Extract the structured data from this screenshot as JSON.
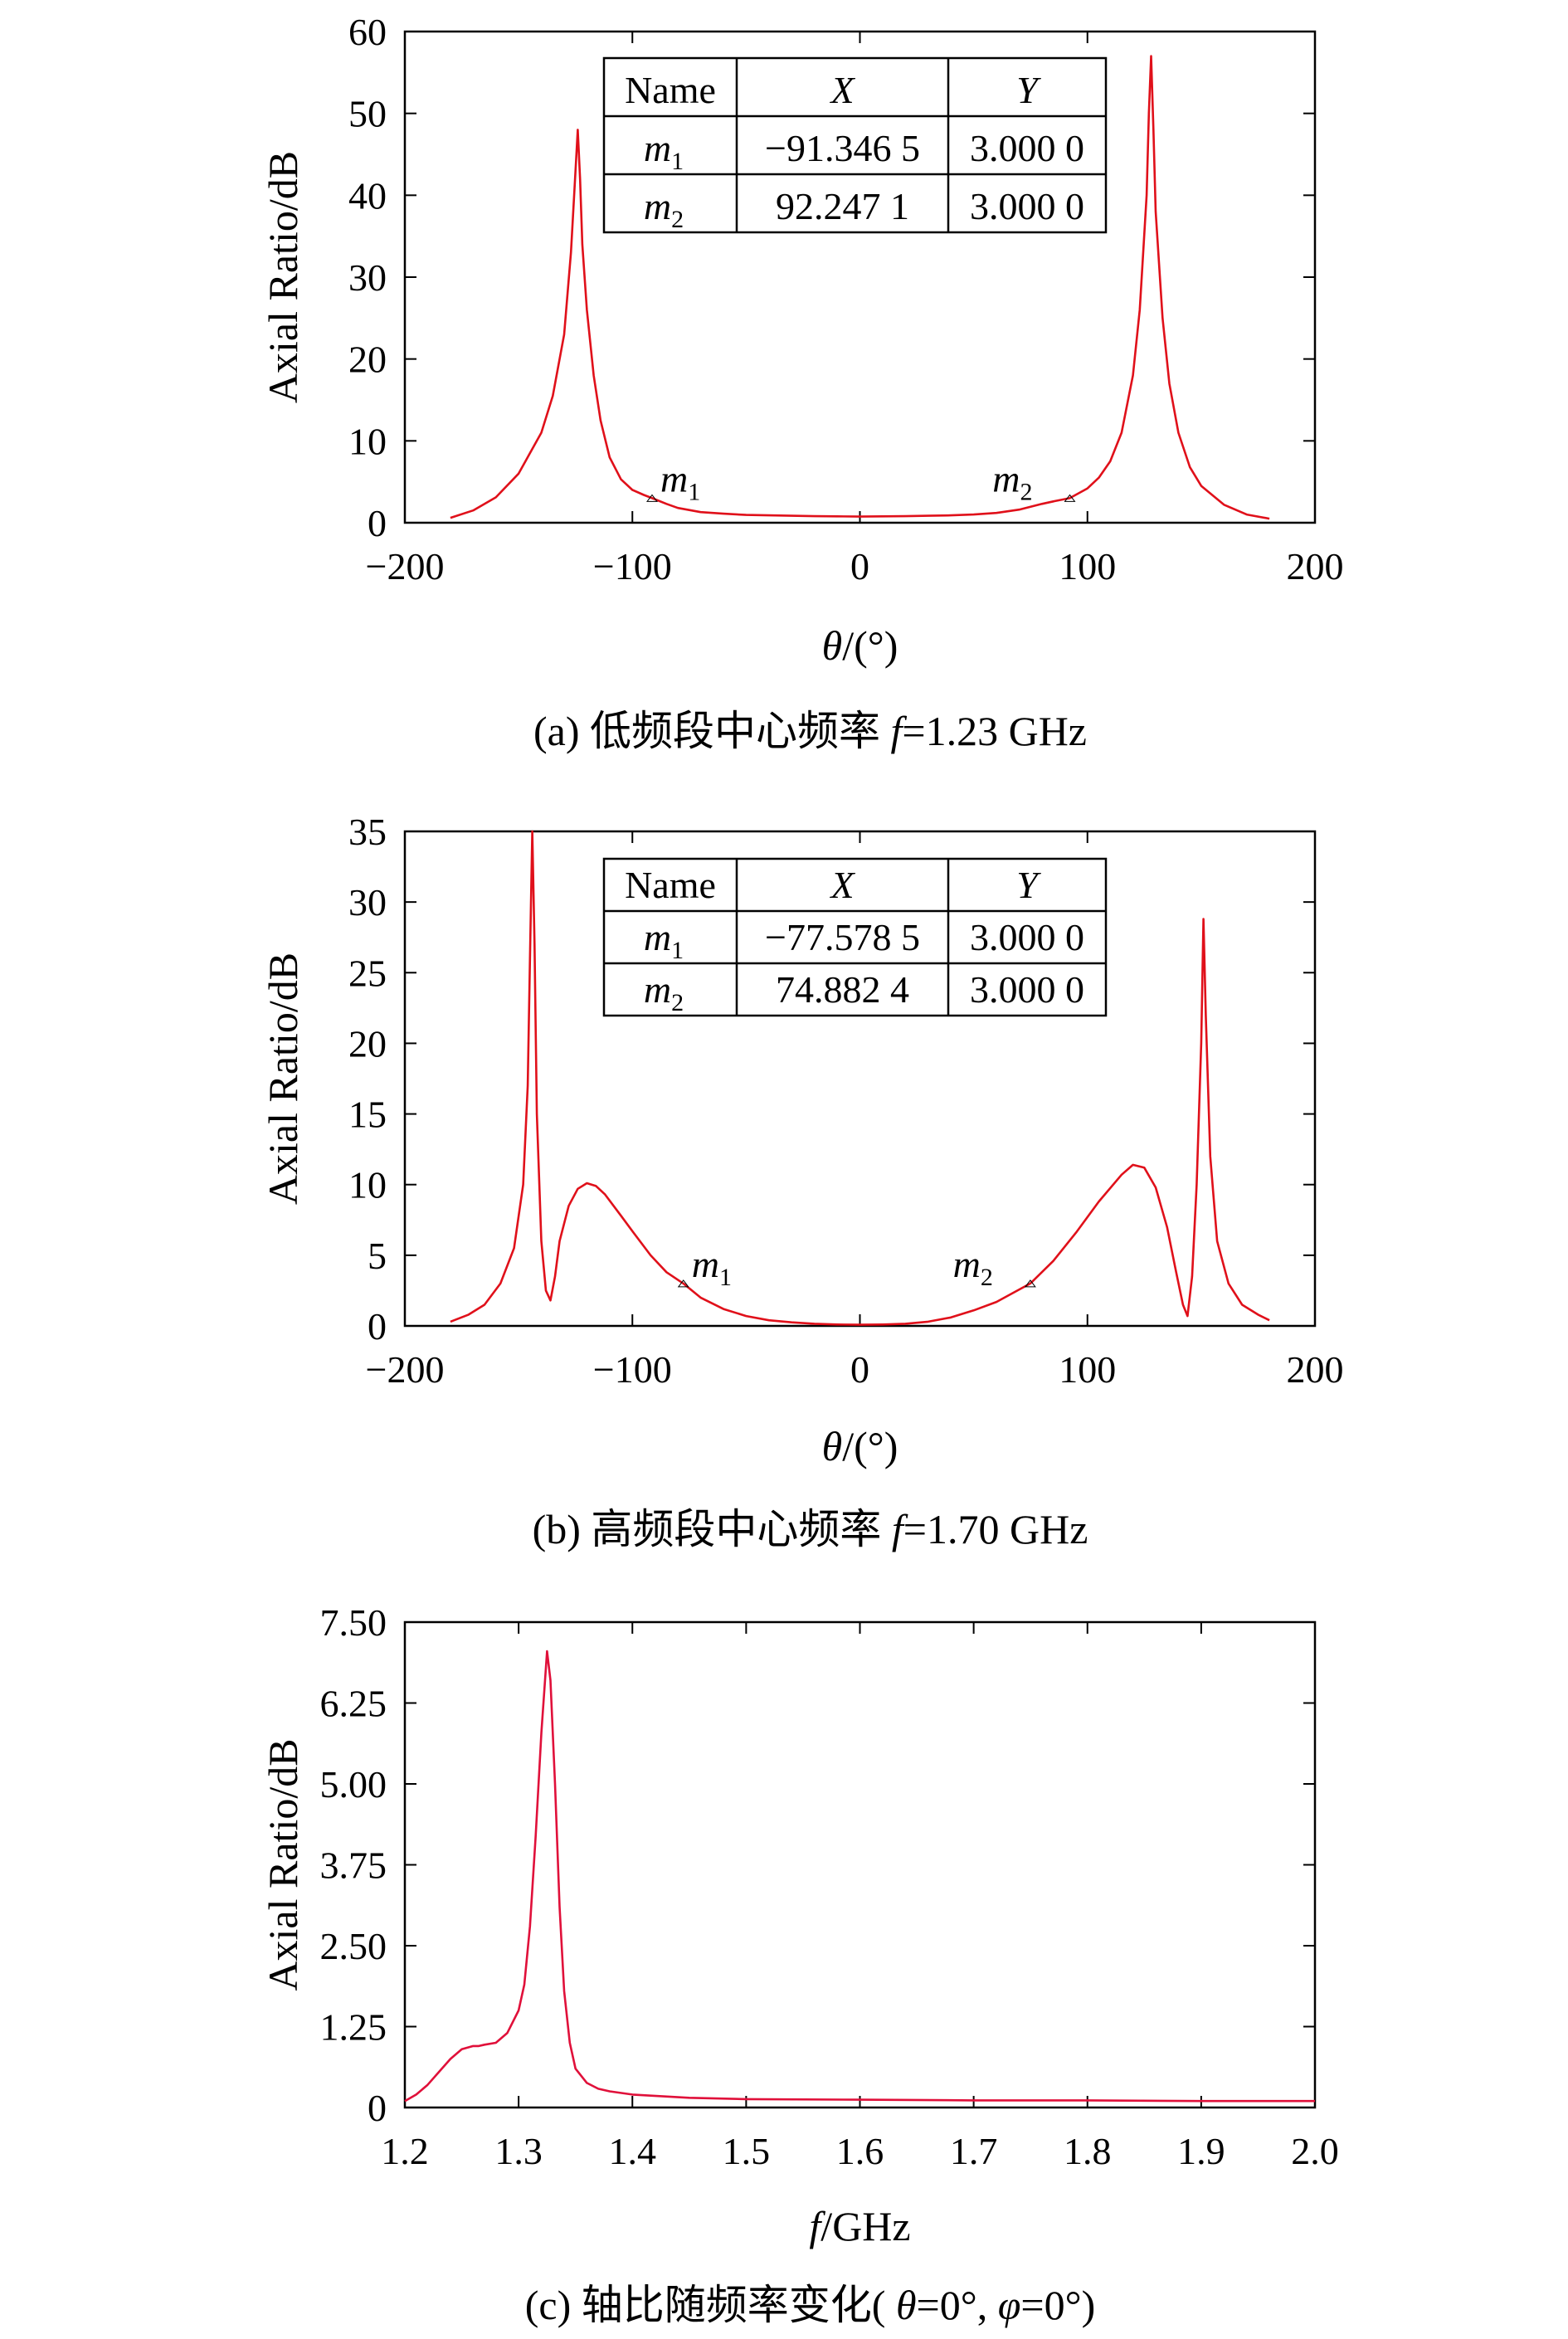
{
  "chart_data": [
    {
      "type": "line",
      "caption": "(a) 低频段中心频率 f=1.23 GHz",
      "xlabel": "θ/(°)",
      "ylabel": "Axial Ratio/dB",
      "xlim": [
        -200,
        200
      ],
      "ylim": [
        0,
        60
      ],
      "xticks": [
        "−200",
        "−100",
        "0",
        "100",
        "200"
      ],
      "yticks": [
        "0",
        "10",
        "20",
        "30",
        "40",
        "50",
        "60"
      ],
      "line_color": "#e0101a",
      "grid": false,
      "series": [
        {
          "x": [
            -180,
            -170,
            -160,
            -150,
            -140,
            -135,
            -130,
            -127,
            -125,
            -124,
            -123,
            -122,
            -120,
            -117,
            -114,
            -110,
            -105,
            -100,
            -95,
            -91.3,
            -85,
            -80,
            -70,
            -60,
            -50,
            -40,
            -30,
            -20,
            -10,
            0,
            10,
            20,
            30,
            40,
            50,
            60,
            70,
            80,
            85,
            92.2,
            100,
            105,
            110,
            115,
            120,
            123,
            126,
            127,
            128,
            129,
            130,
            133,
            136,
            140,
            145,
            150,
            160,
            170,
            180
          ],
          "y": [
            0.6,
            1.5,
            3.1,
            6.0,
            11.0,
            15.5,
            23.0,
            33.0,
            43.0,
            48.0,
            42.0,
            34.0,
            26.0,
            18.0,
            12.5,
            8.0,
            5.3,
            4.0,
            3.4,
            3.0,
            2.3,
            1.8,
            1.3,
            1.1,
            0.95,
            0.9,
            0.85,
            0.8,
            0.78,
            0.75,
            0.78,
            0.8,
            0.85,
            0.9,
            1.0,
            1.2,
            1.6,
            2.3,
            2.6,
            3.0,
            4.2,
            5.5,
            7.5,
            11.0,
            18.0,
            26.0,
            40.0,
            50.0,
            57.0,
            48.0,
            38.0,
            25.0,
            17.0,
            11.0,
            6.8,
            4.5,
            2.2,
            1.0,
            0.5
          ]
        }
      ],
      "markers": [
        {
          "name": "m1",
          "x": -91.3465,
          "y": 3.0
        },
        {
          "name": "m2",
          "x": 92.2471,
          "y": 3.0
        }
      ],
      "table": {
        "headers": [
          "Name",
          "X",
          "Y"
        ],
        "rows": [
          [
            "m",
            "1",
            "−91.346 5",
            "3.000 0"
          ],
          [
            "m",
            "2",
            "92.247 1",
            "3.000 0"
          ]
        ]
      }
    },
    {
      "type": "line",
      "caption": "(b) 高频段中心频率 f=1.70 GHz",
      "xlabel": "θ/(°)",
      "ylabel": "Axial Ratio/dB",
      "xlim": [
        -200,
        200
      ],
      "ylim": [
        0,
        35
      ],
      "xticks": [
        "−200",
        "−100",
        "0",
        "100",
        "200"
      ],
      "yticks": [
        "0",
        "5",
        "10",
        "15",
        "20",
        "25",
        "30",
        "35"
      ],
      "line_color": "#e0101a",
      "grid": false,
      "series": [
        {
          "x": [
            -180,
            -172,
            -165,
            -158,
            -152,
            -148,
            -146,
            -145,
            -144,
            -143,
            -142,
            -140,
            -138,
            -136,
            -134,
            -132,
            -128,
            -124,
            -120,
            -116,
            -112,
            -105,
            -100,
            -92,
            -85,
            -77.6,
            -70,
            -60,
            -50,
            -40,
            -30,
            -20,
            -10,
            0,
            10,
            20,
            30,
            40,
            50,
            60,
            74.9,
            85,
            95,
            105,
            115,
            120,
            125,
            130,
            135,
            139,
            142,
            144,
            146,
            148,
            150,
            151,
            152,
            154,
            157,
            162,
            168,
            175,
            180
          ],
          "y": [
            0.3,
            0.8,
            1.5,
            3.0,
            5.5,
            10.0,
            17.0,
            26.0,
            35.0,
            27.0,
            15.0,
            6.0,
            2.5,
            1.8,
            3.5,
            6.0,
            8.5,
            9.7,
            10.1,
            9.9,
            9.3,
            7.8,
            6.7,
            5.0,
            3.8,
            3.0,
            2.0,
            1.2,
            0.7,
            0.4,
            0.25,
            0.15,
            0.1,
            0.08,
            0.1,
            0.15,
            0.3,
            0.6,
            1.1,
            1.7,
            3.0,
            4.6,
            6.6,
            8.8,
            10.7,
            11.4,
            11.2,
            9.8,
            7.0,
            3.8,
            1.5,
            0.7,
            3.5,
            10.0,
            20.0,
            28.8,
            22.0,
            12.0,
            6.0,
            3.0,
            1.5,
            0.8,
            0.4
          ]
        }
      ],
      "markers": [
        {
          "name": "m1",
          "x": -77.5785,
          "y": 3.0
        },
        {
          "name": "m2",
          "x": 74.8824,
          "y": 3.0
        }
      ],
      "table": {
        "headers": [
          "Name",
          "X",
          "Y"
        ],
        "rows": [
          [
            "m",
            "1",
            "−77.578 5",
            "3.000 0"
          ],
          [
            "m",
            "2",
            "74.882 4",
            "3.000 0"
          ]
        ]
      }
    },
    {
      "type": "line",
      "caption": "(c) 轴比随频率变化( θ=0°, φ=0°)",
      "xlabel": "f/GHz",
      "ylabel": "Axial Ratio/dB",
      "xlim": [
        1.2,
        2.0
      ],
      "ylim": [
        0,
        7.5
      ],
      "xticks": [
        "1.2",
        "1.3",
        "1.4",
        "1.5",
        "1.6",
        "1.7",
        "1.8",
        "1.9",
        "2.0"
      ],
      "yticks": [
        "0",
        "1.25",
        "2.50",
        "3.75",
        "5.00",
        "6.25",
        "7.50"
      ],
      "line_color": "#e0103a",
      "grid": false,
      "series": [
        {
          "x": [
            1.2,
            1.21,
            1.22,
            1.23,
            1.24,
            1.25,
            1.26,
            1.265,
            1.27,
            1.28,
            1.29,
            1.3,
            1.305,
            1.31,
            1.315,
            1.32,
            1.325,
            1.328,
            1.332,
            1.336,
            1.34,
            1.345,
            1.35,
            1.36,
            1.37,
            1.38,
            1.4,
            1.45,
            1.5,
            1.6,
            1.7,
            1.8,
            1.9,
            2.0
          ],
          "y": [
            0.1,
            0.2,
            0.35,
            0.55,
            0.75,
            0.9,
            0.95,
            0.95,
            0.97,
            1.0,
            1.15,
            1.5,
            1.9,
            2.8,
            4.2,
            5.8,
            7.05,
            6.6,
            5.0,
            3.1,
            1.8,
            1.0,
            0.6,
            0.38,
            0.29,
            0.25,
            0.2,
            0.15,
            0.13,
            0.12,
            0.11,
            0.11,
            0.1,
            0.1
          ]
        }
      ]
    }
  ]
}
